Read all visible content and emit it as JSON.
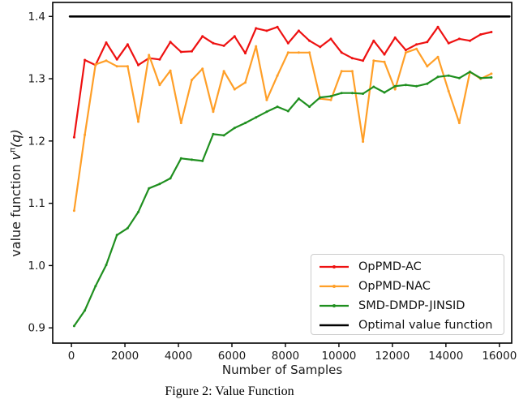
{
  "figure": {
    "caption": "Figure 2: Value Function"
  },
  "chart_data": {
    "type": "line",
    "title": "",
    "xlabel": "Number of Samples",
    "ylabel": "value function vπ(q)",
    "ylabel_parts": {
      "prefix": "value function ",
      "symbol": "v",
      "superscript": "π",
      "argument": "(q)"
    },
    "grid": false,
    "legend_position": "lower right",
    "xlim": [
      -700,
      16460
    ],
    "ylim": [
      0.8755,
      1.4225
    ],
    "xticks": [
      0,
      2000,
      4000,
      6000,
      8000,
      10000,
      12000,
      14000,
      16000
    ],
    "yticks": [
      0.9,
      1.0,
      1.1,
      1.2,
      1.3,
      1.4
    ],
    "x": [
      100,
      500,
      900,
      1300,
      1700,
      2100,
      2500,
      2900,
      3300,
      3700,
      4100,
      4500,
      4900,
      5300,
      5700,
      6100,
      6500,
      6900,
      7300,
      7700,
      8100,
      8500,
      8900,
      9300,
      9700,
      10100,
      10500,
      10900,
      11300,
      11700,
      12100,
      12500,
      12900,
      13300,
      13700,
      14100,
      14500,
      14900,
      15300,
      15700
    ],
    "series": [
      {
        "name": "OpPMD-AC",
        "color": "#ee1111",
        "values": [
          1.206,
          1.33,
          1.322,
          1.358,
          1.331,
          1.355,
          1.322,
          1.333,
          1.331,
          1.359,
          1.343,
          1.344,
          1.368,
          1.357,
          1.353,
          1.368,
          1.341,
          1.381,
          1.377,
          1.383,
          1.357,
          1.377,
          1.361,
          1.351,
          1.364,
          1.342,
          1.333,
          1.329,
          1.361,
          1.339,
          1.366,
          1.346,
          1.355,
          1.359,
          1.383,
          1.357,
          1.364,
          1.361,
          1.371,
          1.375
        ]
      },
      {
        "name": "OpPMD-NAC",
        "color": "#ff9f28",
        "values": [
          1.088,
          1.21,
          1.323,
          1.329,
          1.32,
          1.32,
          1.231,
          1.338,
          1.29,
          1.313,
          1.229,
          1.298,
          1.316,
          1.247,
          1.312,
          1.283,
          1.294,
          1.352,
          1.266,
          1.305,
          1.342,
          1.342,
          1.342,
          1.268,
          1.266,
          1.312,
          1.312,
          1.199,
          1.329,
          1.327,
          1.283,
          1.342,
          1.348,
          1.32,
          1.335,
          1.28,
          1.229,
          1.311,
          1.3,
          1.308
        ]
      },
      {
        "name": "SMD-DMDP-JINSID",
        "color": "#1f8f1f",
        "values": [
          0.903,
          0.928,
          0.967,
          1.001,
          1.049,
          1.06,
          1.086,
          1.124,
          1.131,
          1.14,
          1.172,
          1.17,
          1.168,
          1.211,
          1.209,
          1.221,
          1.229,
          1.238,
          1.247,
          1.255,
          1.248,
          1.268,
          1.255,
          1.27,
          1.272,
          1.277,
          1.277,
          1.276,
          1.287,
          1.278,
          1.288,
          1.29,
          1.288,
          1.292,
          1.303,
          1.305,
          1.301,
          1.311,
          1.301,
          1.302
        ]
      },
      {
        "name": "Optimal value function",
        "color": "#000000",
        "type": "hline",
        "value": 1.4,
        "x_start": -60,
        "x_end": 16380
      }
    ]
  }
}
